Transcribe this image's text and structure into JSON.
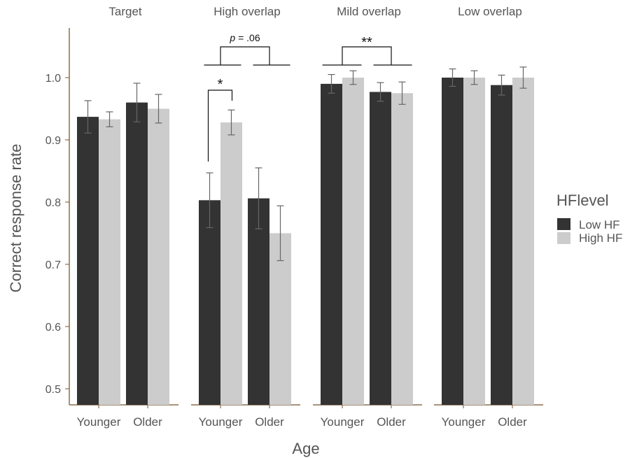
{
  "chart_data": {
    "type": "bar",
    "facets": [
      "Target",
      "High overlap",
      "Mild overlap",
      "Low overlap"
    ],
    "categories": [
      "Younger",
      "Older"
    ],
    "xlabel": "Age",
    "ylabel": "Correct response rate",
    "ylim": [
      0.5,
      1.0
    ],
    "yticks": [
      "0.5",
      "0.6",
      "0.7",
      "0.8",
      "0.9",
      "1.0"
    ],
    "legend": {
      "title": "HFlevel",
      "position": "right"
    },
    "series": [
      {
        "name": "Low HF",
        "color": "#333333",
        "values": [
          [
            0.937,
            0.96
          ],
          [
            0.803,
            0.806
          ],
          [
            0.99,
            0.977
          ],
          [
            1.0,
            0.988
          ]
        ],
        "errors": [
          [
            0.026,
            0.031
          ],
          [
            0.044,
            0.049
          ],
          [
            0.015,
            0.015
          ],
          [
            0.014,
            0.016
          ]
        ]
      },
      {
        "name": "High HF",
        "color": "#cccccc",
        "values": [
          [
            0.933,
            0.95
          ],
          [
            0.928,
            0.75
          ],
          [
            1.0,
            0.975
          ],
          [
            1.0,
            1.0
          ]
        ],
        "errors": [
          [
            0.012,
            0.023
          ],
          [
            0.02,
            0.044
          ],
          [
            0.011,
            0.018
          ],
          [
            0.011,
            0.017
          ]
        ]
      }
    ],
    "annotations": [
      {
        "facet": "High overlap",
        "label_prefix": "p",
        "label": " = .06",
        "italic_prefix": true,
        "type": "between-groups"
      },
      {
        "facet": "High overlap",
        "label": "*",
        "type": "within-group",
        "group": "Younger"
      },
      {
        "facet": "Mild overlap",
        "label": "**",
        "type": "between-groups"
      }
    ]
  },
  "colors": {
    "axis": "#8b6f4e",
    "text": "#555555",
    "error_bar": "#666666",
    "annotation": "#111111"
  }
}
